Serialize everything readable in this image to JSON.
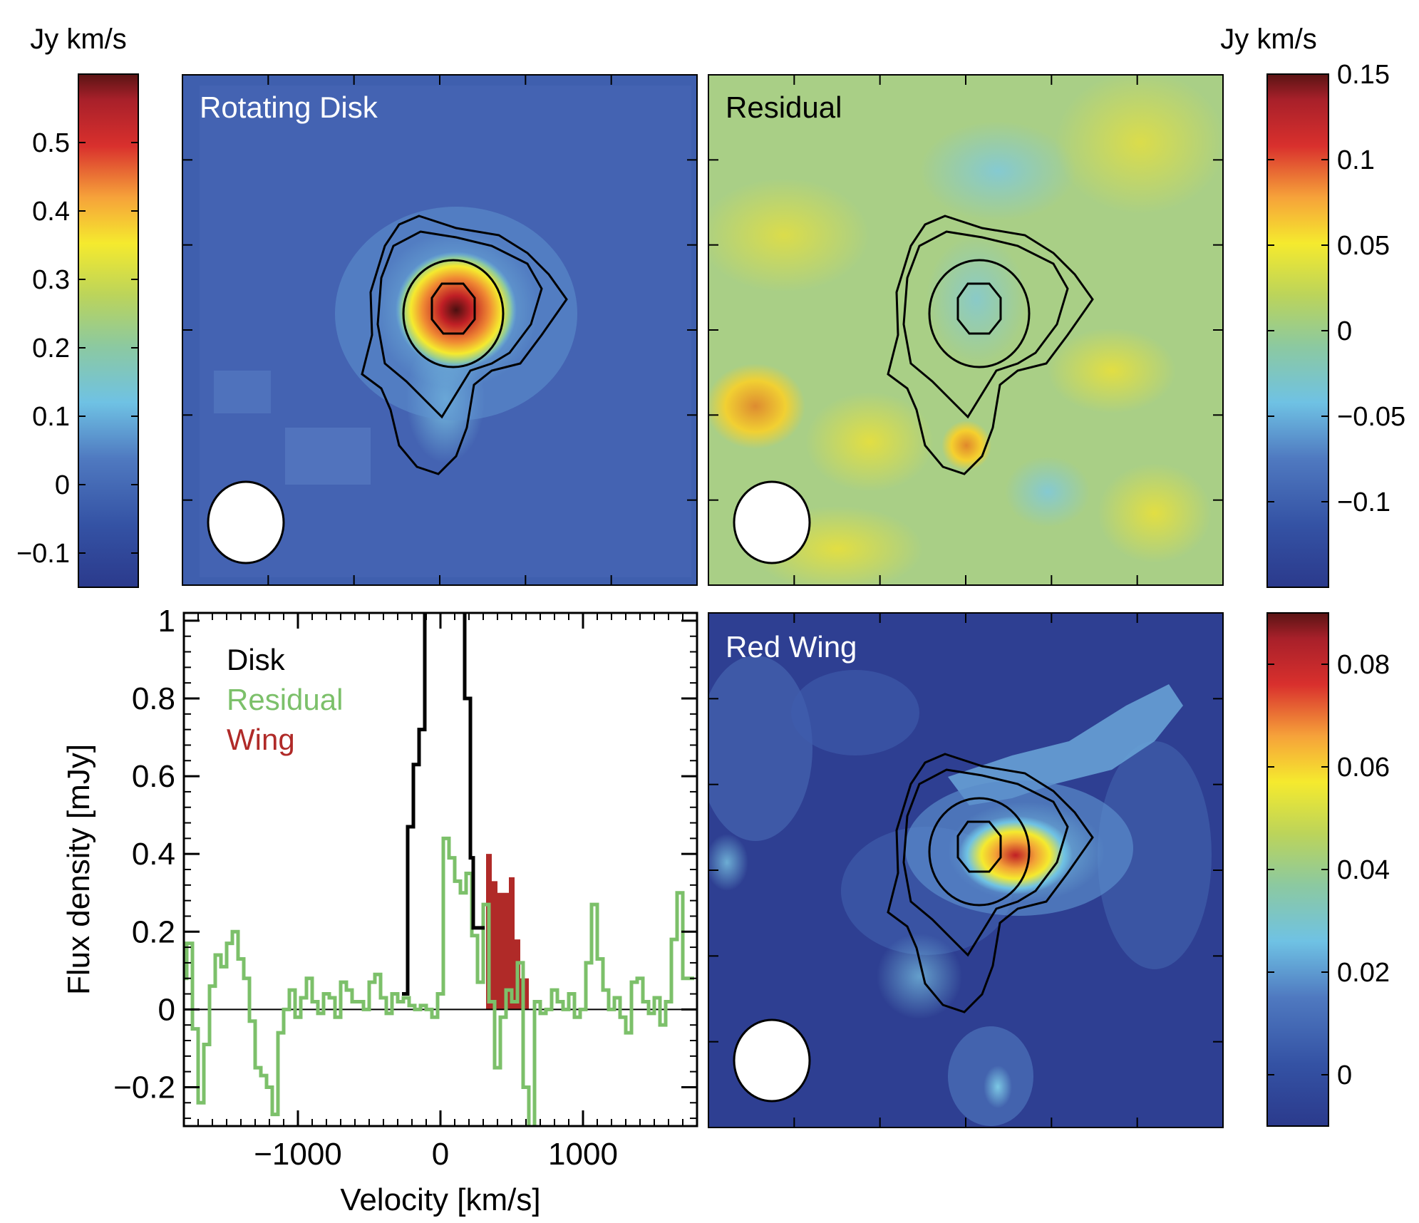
{
  "colors": {
    "disk_line": "#000000",
    "residual_line": "#7cc06a",
    "wing_fill": "#b02a28",
    "legend_wing_text": "#b02a28",
    "legend_residual_text": "#7cc06a"
  },
  "colorbar_titles": {
    "left": "Jy km/s",
    "right": "Jy km/s"
  },
  "panels": {
    "rotating_disk": {
      "title": "Rotating Disk"
    },
    "residual": {
      "title": "Residual"
    },
    "red_wing": {
      "title": "Red Wing"
    }
  },
  "colorbars": {
    "left": {
      "min": -0.15,
      "max": 0.6,
      "ticks": [
        -0.1,
        0,
        0.1,
        0.2,
        0.3,
        0.4,
        0.5
      ],
      "tick_labels": [
        "−0.1",
        "0",
        "0.1",
        "0.2",
        "0.3",
        "0.4",
        "0.5"
      ]
    },
    "right_top": {
      "min": -0.15,
      "max": 0.15,
      "ticks": [
        -0.1,
        -0.05,
        0,
        0.05,
        0.1,
        0.15
      ],
      "tick_labels": [
        "−0.1",
        "−0.05",
        "0",
        "0.05",
        "0.1",
        "0.15"
      ]
    },
    "right_bottom": {
      "min": -0.01,
      "max": 0.09,
      "ticks": [
        0,
        0.02,
        0.04,
        0.06,
        0.08
      ],
      "tick_labels": [
        "0",
        "0.02",
        "0.04",
        "0.06",
        "0.08"
      ]
    }
  },
  "chart_data": {
    "type": "line",
    "xlabel": "Velocity [km/s]",
    "ylabel": "Flux density [mJy]",
    "xlim": [
      -1800,
      1800
    ],
    "ylim": [
      -0.3,
      1.02
    ],
    "xticks": [
      -1000,
      0,
      1000
    ],
    "xtick_labels": [
      "−1000",
      "0",
      "1000"
    ],
    "yticks": [
      -0.2,
      0,
      0.2,
      0.4,
      0.6,
      0.8,
      1
    ],
    "ytick_labels": [
      "−0.2",
      "0",
      "0.2",
      "0.4",
      "0.6",
      "0.8",
      "1"
    ],
    "legend": [
      "Disk",
      "Residual",
      "Wing"
    ],
    "series": [
      {
        "name": "Disk",
        "style": "step",
        "x": [
          -270,
          -230,
          -190,
          -150,
          -110,
          -70,
          170,
          190,
          210,
          230,
          270
        ],
        "y": [
          0.04,
          0.47,
          0.63,
          0.72,
          1.1,
          1.1,
          0.8,
          0.8,
          0.39,
          0.21,
          0.21
        ]
      },
      {
        "name": "Residual",
        "style": "step",
        "x": [
          -1800,
          -1780,
          -1740,
          -1700,
          -1660,
          -1620,
          -1580,
          -1540,
          -1500,
          -1460,
          -1420,
          -1380,
          -1340,
          -1300,
          -1260,
          -1220,
          -1180,
          -1140,
          -1100,
          -1060,
          -1020,
          -980,
          -940,
          -900,
          -860,
          -820,
          -780,
          -740,
          -700,
          -660,
          -620,
          -580,
          -540,
          -500,
          -460,
          -420,
          -380,
          -340,
          -300,
          -260,
          -220,
          -180,
          -140,
          -100,
          -60,
          -20,
          20,
          60,
          100,
          140,
          180,
          220,
          260,
          300,
          340,
          380,
          420,
          460,
          500,
          540,
          580,
          620,
          660,
          700,
          740,
          780,
          820,
          860,
          900,
          940,
          980,
          1020,
          1060,
          1100,
          1140,
          1180,
          1220,
          1260,
          1300,
          1340,
          1380,
          1420,
          1460,
          1500,
          1540,
          1580,
          1620,
          1660,
          1700,
          1740
        ],
        "y": [
          0.08,
          0.17,
          -0.05,
          -0.24,
          -0.09,
          0.06,
          0.14,
          0.11,
          0.17,
          0.2,
          0.13,
          0.08,
          -0.03,
          -0.15,
          -0.17,
          -0.2,
          -0.27,
          -0.06,
          0.0,
          0.05,
          -0.02,
          0.03,
          0.08,
          0.02,
          -0.01,
          0.04,
          0.03,
          -0.02,
          0.07,
          0.05,
          0.02,
          0.02,
          0.0,
          0.07,
          0.09,
          0.03,
          -0.01,
          0.04,
          0.02,
          0.03,
          0.01,
          0.0,
          0.01,
          0.0,
          -0.02,
          0.04,
          0.44,
          0.39,
          0.33,
          0.3,
          0.35,
          0.19,
          0.07,
          0.27,
          0.02,
          -0.15,
          -0.02,
          0.05,
          0.02,
          0.12,
          -0.2,
          -0.33,
          0.02,
          -0.01,
          0.0,
          0.05,
          0.02,
          0.0,
          0.04,
          -0.02,
          0.0,
          0.12,
          0.27,
          0.13,
          0.05,
          0.0,
          0.03,
          -0.02,
          -0.06,
          0.07,
          0.08,
          0.02,
          -0.01,
          0.03,
          -0.04,
          0.02,
          0.18,
          0.3,
          0.08,
          0.08
        ]
      },
      {
        "name": "Wing",
        "style": "filled-step",
        "x": [
          320,
          360,
          400,
          440,
          480,
          520,
          560,
          620
        ],
        "y": [
          0.4,
          0.33,
          0.3,
          0.3,
          0.34,
          0.18,
          0.08,
          0.0
        ]
      }
    ],
    "maps": [
      {
        "name": "Rotating Disk",
        "type": "heatmap",
        "peak_value": 0.56,
        "contours": 4,
        "beam": "ellipse"
      },
      {
        "name": "Residual",
        "type": "heatmap",
        "peak_value": 0.09,
        "contours": 4,
        "beam": "ellipse"
      },
      {
        "name": "Red Wing",
        "type": "heatmap",
        "peak_value": 0.086,
        "contours": 4,
        "beam": "ellipse"
      }
    ]
  }
}
